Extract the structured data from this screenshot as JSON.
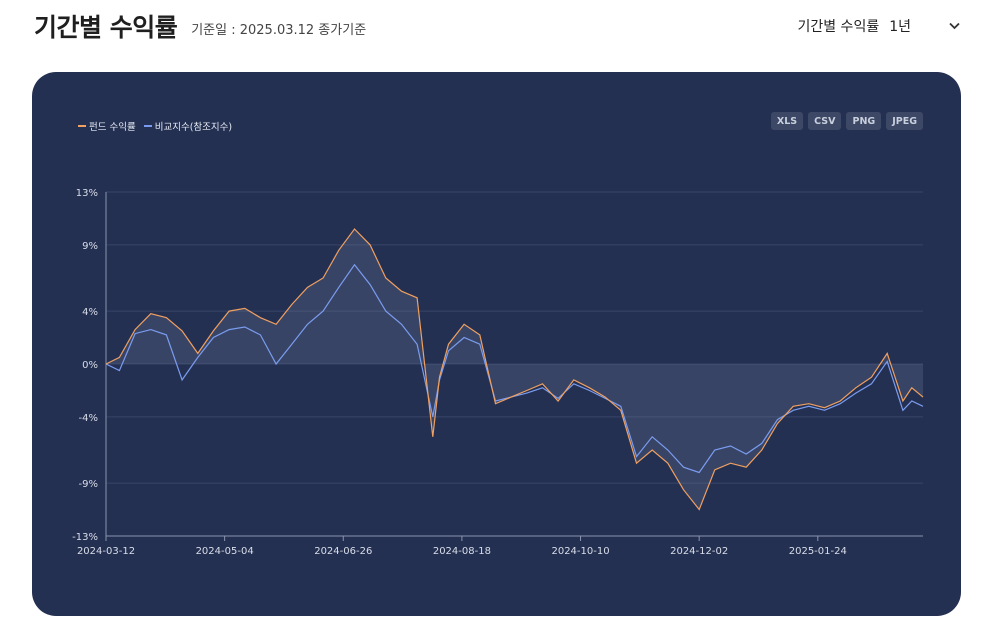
{
  "header": {
    "title": "기간별 수익률",
    "subtitle": "기준일 : 2025.03.12 종가기준",
    "period_label": "기간별 수익률",
    "period_value": "1년"
  },
  "exports": [
    "XLS",
    "CSV",
    "PNG",
    "JPEG"
  ],
  "colors": {
    "fund": "#f0a060",
    "benchmark": "#7a9cf0",
    "background": "#243052"
  },
  "chart_data": {
    "type": "line",
    "title": "",
    "legend": "top-left",
    "grid": true,
    "y_ticks": [
      "13%",
      "9%",
      "4%",
      "0%",
      "-4%",
      "-9%",
      "-13%"
    ],
    "ylim": [
      -13,
      13
    ],
    "x_ticks": [
      "2024-03-12",
      "2024-05-04",
      "2024-06-26",
      "2024-08-18",
      "2024-10-10",
      "2024-12-02",
      "2025-01-24"
    ],
    "x_range": [
      "2024-03-12",
      "2025-03-12"
    ],
    "series": [
      {
        "name": "펀드 수익률",
        "dates": [
          "2024-03-12",
          "2024-03-18",
          "2024-03-25",
          "2024-04-01",
          "2024-04-08",
          "2024-04-15",
          "2024-04-22",
          "2024-04-29",
          "2024-05-06",
          "2024-05-13",
          "2024-05-20",
          "2024-05-27",
          "2024-06-03",
          "2024-06-10",
          "2024-06-17",
          "2024-06-24",
          "2024-07-01",
          "2024-07-08",
          "2024-07-15",
          "2024-07-22",
          "2024-07-29",
          "2024-08-05",
          "2024-08-08",
          "2024-08-12",
          "2024-08-19",
          "2024-08-26",
          "2024-09-02",
          "2024-09-09",
          "2024-09-16",
          "2024-09-23",
          "2024-09-30",
          "2024-10-07",
          "2024-10-14",
          "2024-10-21",
          "2024-10-28",
          "2024-11-04",
          "2024-11-11",
          "2024-11-18",
          "2024-11-25",
          "2024-12-02",
          "2024-12-09",
          "2024-12-16",
          "2024-12-23",
          "2024-12-30",
          "2025-01-06",
          "2025-01-13",
          "2025-01-20",
          "2025-01-27",
          "2025-02-03",
          "2025-02-10",
          "2025-02-17",
          "2025-02-24",
          "2025-03-03",
          "2025-03-07",
          "2025-03-12"
        ],
        "values": [
          0.0,
          0.5,
          2.6,
          3.8,
          3.5,
          2.5,
          0.8,
          2.5,
          4.0,
          4.2,
          3.5,
          3.0,
          4.5,
          5.8,
          6.5,
          8.6,
          10.2,
          9.0,
          6.5,
          5.5,
          5.0,
          -5.5,
          -1.0,
          1.5,
          3.0,
          2.2,
          -3.0,
          -2.5,
          -2.0,
          -1.5,
          -2.8,
          -1.2,
          -1.8,
          -2.5,
          -3.5,
          -7.5,
          -6.5,
          -7.5,
          -9.5,
          -11.0,
          -8.0,
          -7.5,
          -7.8,
          -6.5,
          -4.5,
          -3.2,
          -3.0,
          -3.3,
          -2.8,
          -1.8,
          -1.0,
          0.8,
          -2.8,
          -1.8,
          -2.5
        ]
      },
      {
        "name": "비교지수(참조지수)",
        "dates": [
          "2024-03-12",
          "2024-03-18",
          "2024-03-25",
          "2024-04-01",
          "2024-04-08",
          "2024-04-15",
          "2024-04-22",
          "2024-04-29",
          "2024-05-06",
          "2024-05-13",
          "2024-05-20",
          "2024-05-27",
          "2024-06-03",
          "2024-06-10",
          "2024-06-17",
          "2024-06-24",
          "2024-07-01",
          "2024-07-08",
          "2024-07-15",
          "2024-07-22",
          "2024-07-29",
          "2024-08-05",
          "2024-08-08",
          "2024-08-12",
          "2024-08-19",
          "2024-08-26",
          "2024-09-02",
          "2024-09-09",
          "2024-09-16",
          "2024-09-23",
          "2024-09-30",
          "2024-10-07",
          "2024-10-14",
          "2024-10-21",
          "2024-10-28",
          "2024-11-04",
          "2024-11-11",
          "2024-11-18",
          "2024-11-25",
          "2024-12-02",
          "2024-12-09",
          "2024-12-16",
          "2024-12-23",
          "2024-12-30",
          "2025-01-06",
          "2025-01-13",
          "2025-01-20",
          "2025-01-27",
          "2025-02-03",
          "2025-02-10",
          "2025-02-17",
          "2025-02-24",
          "2025-03-03",
          "2025-03-07",
          "2025-03-12"
        ],
        "values": [
          0.0,
          -0.5,
          2.3,
          2.6,
          2.2,
          -1.2,
          0.5,
          2.0,
          2.6,
          2.8,
          2.2,
          0.0,
          1.5,
          3.0,
          4.0,
          5.8,
          7.5,
          6.0,
          4.0,
          3.0,
          1.5,
          -4.0,
          -1.2,
          1.0,
          2.0,
          1.5,
          -2.8,
          -2.5,
          -2.2,
          -1.8,
          -2.6,
          -1.5,
          -2.0,
          -2.6,
          -3.2,
          -7.0,
          -5.5,
          -6.5,
          -7.8,
          -8.2,
          -6.5,
          -6.2,
          -6.8,
          -6.0,
          -4.2,
          -3.5,
          -3.2,
          -3.5,
          -3.0,
          -2.2,
          -1.5,
          0.2,
          -3.5,
          -2.8,
          -3.2
        ]
      }
    ]
  }
}
